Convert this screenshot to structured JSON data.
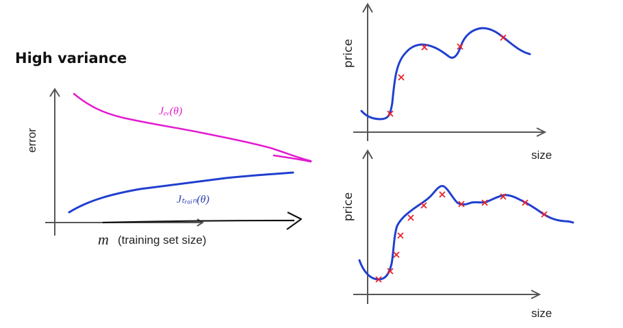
{
  "title": "High variance",
  "learning_curve": {
    "ylabel": "error",
    "xlabel_var": "m",
    "xlabel_text": "(training set size)",
    "cv_label": "Jₑᵥ(θ)",
    "train_label": "Jₜᵣₐᵢₙ(θ)",
    "colors": {
      "cv": "#e41ad0",
      "train": "#1f3fcf"
    }
  },
  "plot_top": {
    "ylabel": "price",
    "xlabel": "size"
  },
  "plot_bottom": {
    "ylabel": "price",
    "xlabel": "size"
  },
  "colors": {
    "fit": "#1f3fcf",
    "points": "#e8202a"
  }
}
